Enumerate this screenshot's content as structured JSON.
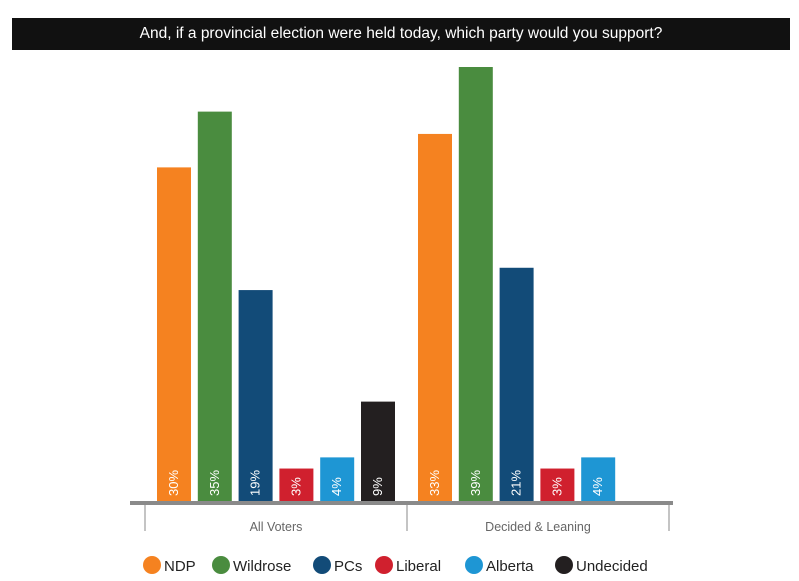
{
  "chart_data": {
    "type": "bar",
    "title": "And, if a provincial election were held today, which party would you support?",
    "categories": [
      "All Voters",
      "Decided & Leaning"
    ],
    "series": [
      {
        "name": "NDP",
        "color": "#F58220",
        "values": [
          30,
          33
        ],
        "labels": [
          "30%",
          "33%"
        ]
      },
      {
        "name": "Wildrose",
        "color": "#4A8C3F",
        "values": [
          35,
          39
        ],
        "labels": [
          "35%",
          "39%"
        ]
      },
      {
        "name": "PCs",
        "color": "#124B78",
        "values": [
          19,
          21
        ],
        "labels": [
          "19%",
          "21%"
        ]
      },
      {
        "name": "Liberal",
        "color": "#D0202E",
        "values": [
          3,
          3
        ],
        "labels": [
          "3%",
          "3%"
        ]
      },
      {
        "name": "Alberta",
        "color": "#1E96D4",
        "values": [
          4,
          4
        ],
        "labels": [
          "4%",
          "4%"
        ]
      },
      {
        "name": "Undecided",
        "color": "#231F20",
        "values": [
          9,
          null
        ],
        "labels": [
          "9%",
          null
        ]
      }
    ],
    "ylim": [
      0,
      39
    ],
    "legend_position": "bottom",
    "grid": false
  }
}
